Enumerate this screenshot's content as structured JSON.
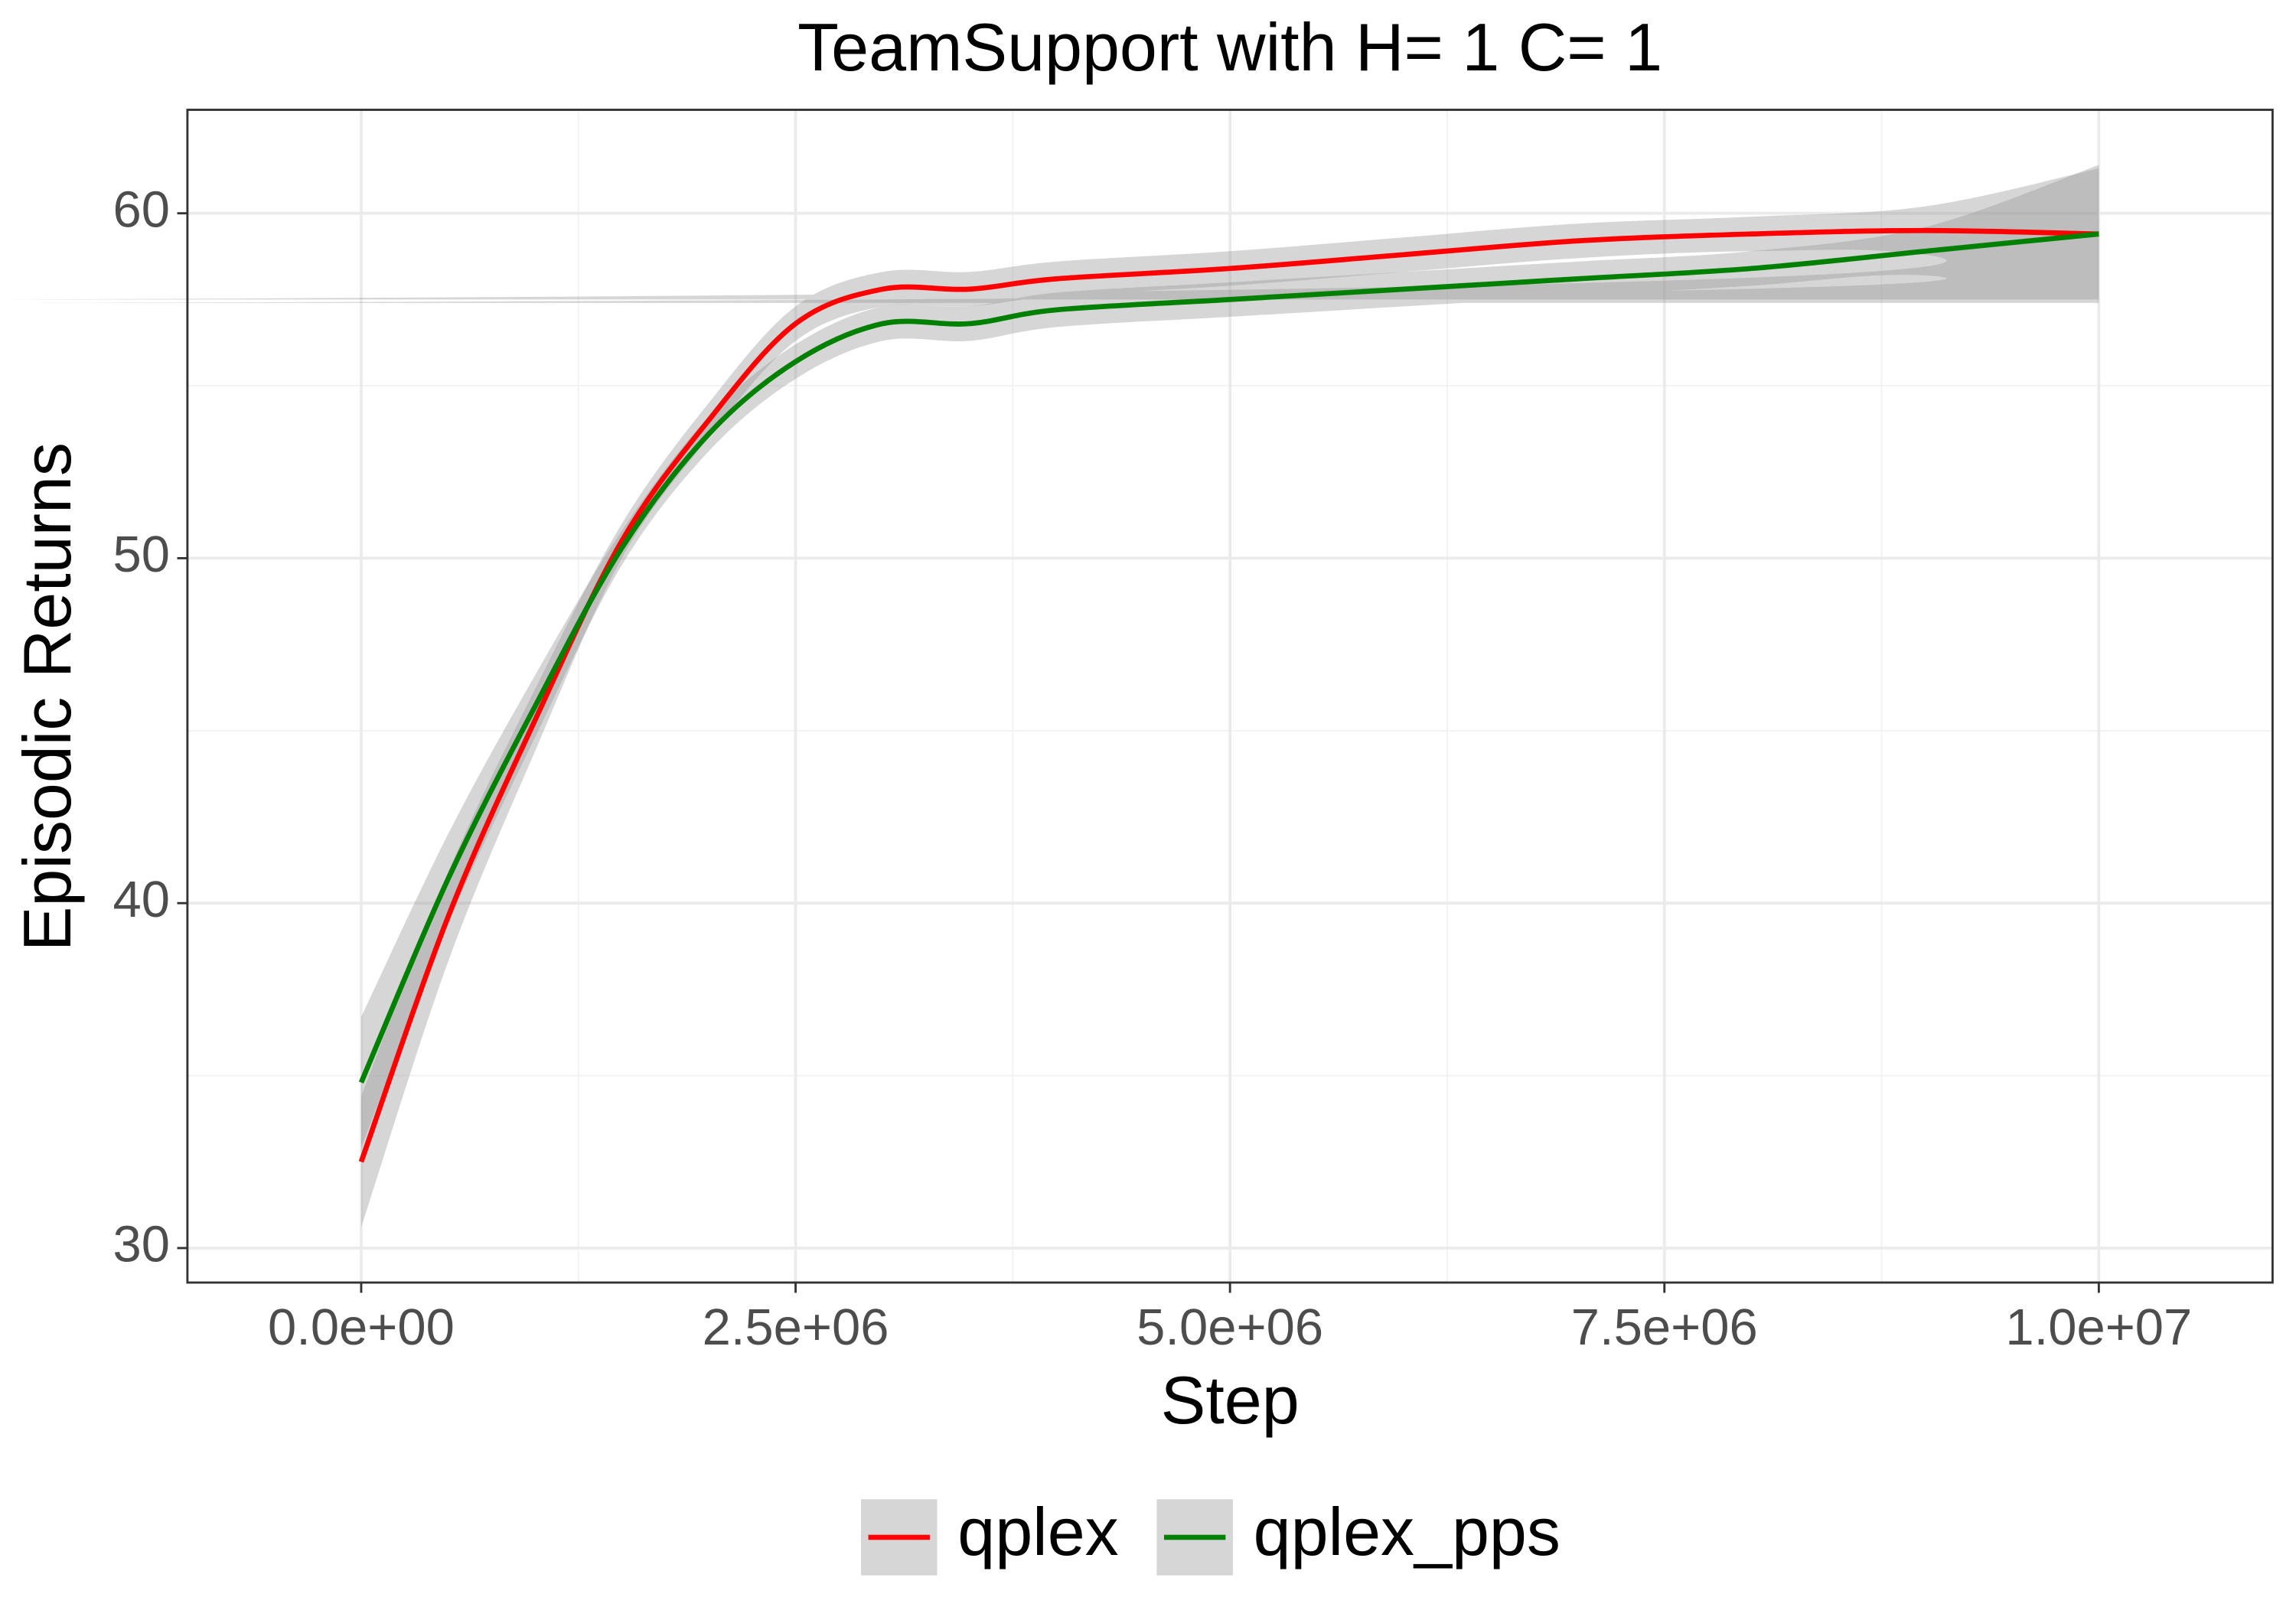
{
  "chart_data": {
    "type": "line",
    "title": "TeamSupport  with H= 1 C= 1",
    "x_label": "Step",
    "y_label": "Episodic Returns",
    "x": [
      0,
      500000,
      1000000,
      1500000,
      2000000,
      2500000,
      3000000,
      3500000,
      4000000,
      5000000,
      6000000,
      7000000,
      8000000,
      9000000,
      10000000
    ],
    "series": [
      {
        "name": "qplex",
        "color": "#ff0000",
        "values": [
          32.5,
          39.6,
          45.3,
          50.5,
          54.0,
          56.8,
          57.8,
          57.8,
          58.1,
          58.4,
          58.8,
          59.2,
          59.4,
          59.5,
          59.4
        ],
        "lower": [
          30.6,
          38.3,
          44.4,
          50.0,
          53.5,
          56.3,
          57.3,
          57.3,
          57.6,
          57.9,
          58.3,
          58.7,
          58.9,
          58.8,
          57.5
        ],
        "upper": [
          34.4,
          40.9,
          46.2,
          51.0,
          54.5,
          57.3,
          58.3,
          58.3,
          58.6,
          58.9,
          59.3,
          59.7,
          59.9,
          60.2,
          61.3
        ]
      },
      {
        "name": "qplex_pps",
        "color": "#008000",
        "values": [
          34.8,
          40.7,
          45.7,
          50.3,
          53.6,
          55.7,
          56.8,
          56.8,
          57.2,
          57.5,
          57.8,
          58.1,
          58.4,
          58.9,
          59.4
        ],
        "lower": [
          32.9,
          39.4,
          44.8,
          49.8,
          53.1,
          55.2,
          56.3,
          56.3,
          56.7,
          57.0,
          57.3,
          57.6,
          57.9,
          58.2,
          57.4
        ],
        "upper": [
          36.7,
          42.0,
          46.6,
          50.8,
          54.1,
          56.2,
          57.3,
          57.3,
          57.7,
          58.0,
          58.3,
          58.6,
          58.9,
          59.6,
          61.4
        ]
      }
    ],
    "band_color": "#999999",
    "xlim": [
      -1000000,
      11000000
    ],
    "ylim": [
      29,
      63
    ],
    "xticks": [
      {
        "value": 0,
        "label": "0.0e+00"
      },
      {
        "value": 2500000,
        "label": "2.5e+06"
      },
      {
        "value": 5000000,
        "label": "5.0e+06"
      },
      {
        "value": 7500000,
        "label": "7.5e+06"
      },
      {
        "value": 10000000,
        "label": "1.0e+07"
      }
    ],
    "yticks": [
      30,
      40,
      50,
      60
    ],
    "grid": true,
    "legend": "bottom"
  }
}
